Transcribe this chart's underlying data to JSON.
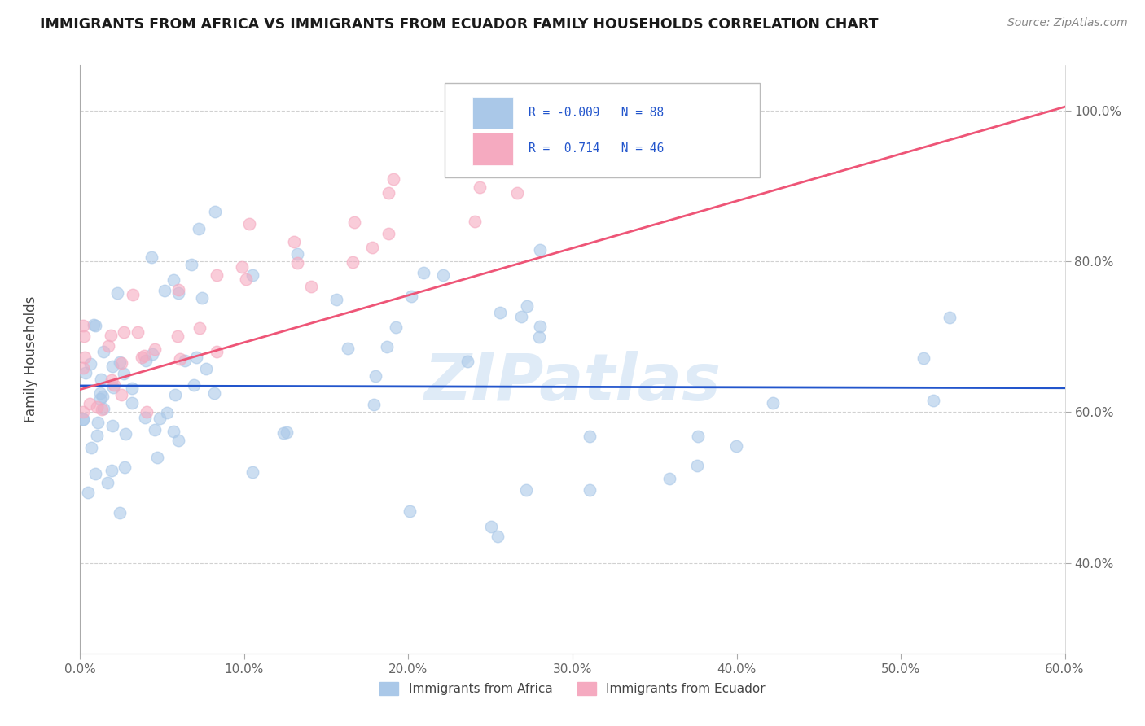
{
  "title": "IMMIGRANTS FROM AFRICA VS IMMIGRANTS FROM ECUADOR FAMILY HOUSEHOLDS CORRELATION CHART",
  "source": "Source: ZipAtlas.com",
  "ylabel": "Family Households",
  "xlim": [
    0.0,
    60.0
  ],
  "ylim": [
    28.0,
    106.0
  ],
  "x_ticks": [
    0,
    10,
    20,
    30,
    40,
    50,
    60
  ],
  "y_ticks": [
    40,
    60,
    80,
    100
  ],
  "africa_color": "#aac8e8",
  "ecuador_color": "#f5aac0",
  "africa_line_color": "#2255cc",
  "ecuador_line_color": "#ee5577",
  "africa_R": -0.009,
  "africa_N": 88,
  "ecuador_R": 0.714,
  "ecuador_N": 46,
  "watermark": "ZIPatlas",
  "watermark_color": "#c0d8f0",
  "background_color": "#ffffff",
  "grid_color": "#cccccc",
  "legend_label_africa": "Immigrants from Africa",
  "legend_label_ecuador": "Immigrants from Ecuador",
  "africa_line_y0": 63.5,
  "africa_line_y1": 63.2,
  "ecuador_line_y0": 63.0,
  "ecuador_line_y1": 100.5
}
